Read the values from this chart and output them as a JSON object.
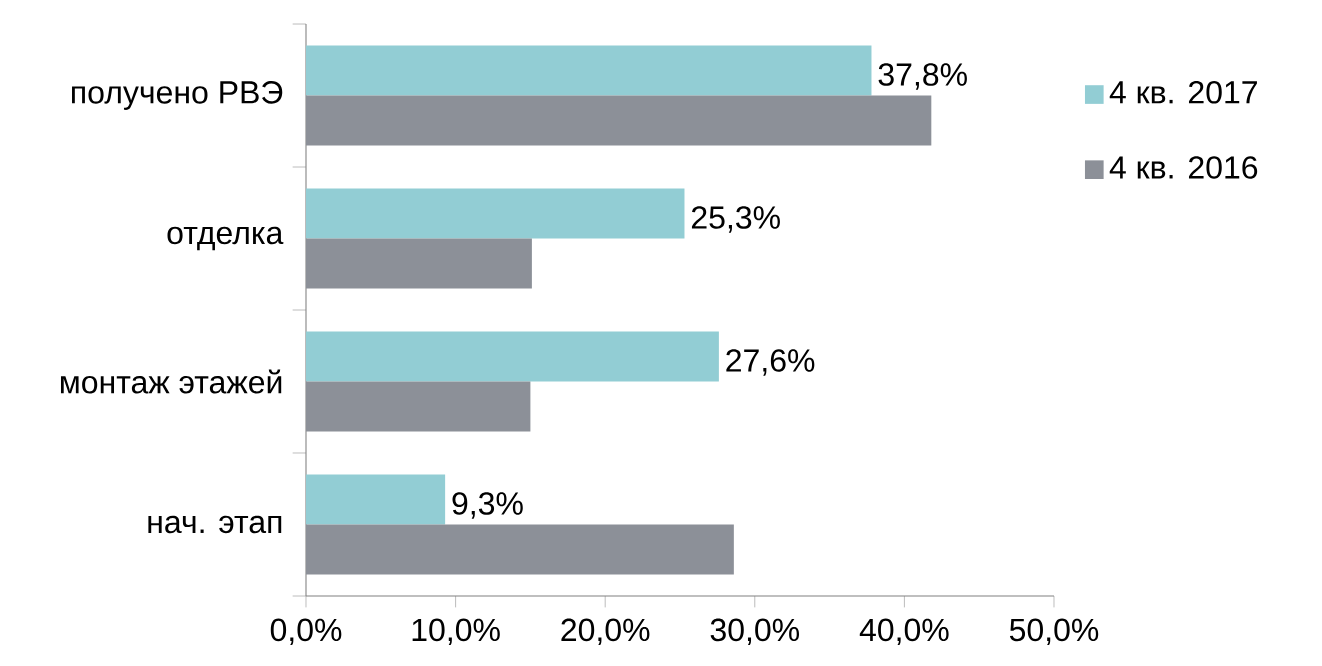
{
  "chart_data": {
    "type": "bar",
    "orientation": "horizontal",
    "categories": [
      "получено РВЭ",
      "отделка",
      "монтаж этажей",
      "нач. этап"
    ],
    "series": [
      {
        "name": "4 кв. 2017",
        "color": "#92cdd4",
        "values": [
          37.8,
          25.3,
          27.6,
          9.3
        ],
        "value_labels": [
          "37,8%",
          "25,3%",
          "27,6%",
          "9,3%"
        ]
      },
      {
        "name": "4 кв. 2016",
        "color": "#8c9098",
        "values": [
          41.8,
          15.1,
          15.0,
          28.6
        ]
      }
    ],
    "xlim": [
      0,
      50
    ],
    "xticks": [
      {
        "value": 0,
        "label": "0,0%"
      },
      {
        "value": 10,
        "label": "10,0%"
      },
      {
        "value": 20,
        "label": "20,0%"
      },
      {
        "value": 30,
        "label": "30,0%"
      },
      {
        "value": 40,
        "label": "40,0%"
      },
      {
        "value": 50,
        "label": "50,0%"
      }
    ],
    "legend": "right"
  }
}
